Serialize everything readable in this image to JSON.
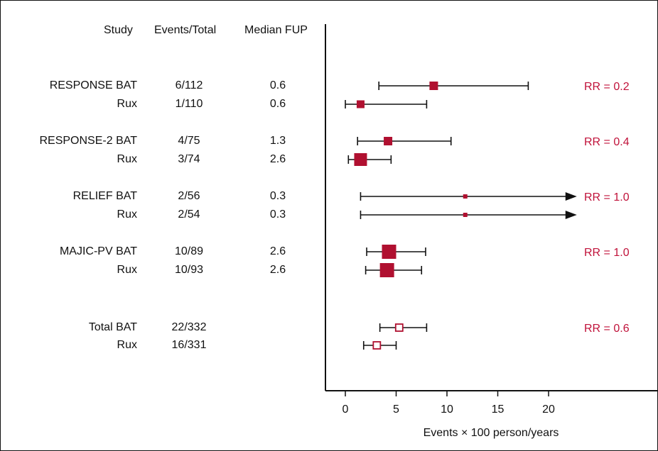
{
  "colors": {
    "marker": "#b01030",
    "rr_text": "#c0123a",
    "line": "#111111"
  },
  "headers": {
    "study": "Study",
    "events": "Events/Total",
    "fup": "Median FUP"
  },
  "chart_data": {
    "type": "forest",
    "xlabel": "Events × 100 person/years",
    "xlim": [
      -1,
      28
    ],
    "xticks": [
      0,
      5,
      10,
      15,
      20
    ],
    "rows": [
      {
        "study": "RESPONSE BAT",
        "events": "6/112",
        "fup": "0.6",
        "est": 8.7,
        "lo": 3.3,
        "hi": 18.0,
        "arrow": false,
        "size": 6,
        "filled": true,
        "rr": "RR = 0.2"
      },
      {
        "study": "Rux",
        "events": "1/110",
        "fup": "0.6",
        "est": 1.5,
        "lo": 0.0,
        "hi": 8.0,
        "arrow": false,
        "size": 5.5,
        "filled": true,
        "rr": ""
      },
      {
        "study": "RESPONSE-2 BAT",
        "events": "4/75",
        "fup": "1.3",
        "est": 4.2,
        "lo": 1.2,
        "hi": 10.4,
        "arrow": false,
        "size": 6,
        "filled": true,
        "rr": "RR = 0.4"
      },
      {
        "study": "Rux",
        "events": "3/74",
        "fup": "2.6",
        "est": 1.5,
        "lo": 0.3,
        "hi": 4.5,
        "arrow": false,
        "size": 9,
        "filled": true,
        "rr": ""
      },
      {
        "study": "RELIEF BAT",
        "events": "2/56",
        "fup": "0.3",
        "est": 11.8,
        "lo": 1.5,
        "hi": 22.5,
        "arrow": true,
        "size": 3,
        "filled": true,
        "rr": "RR = 1.0"
      },
      {
        "study": "Rux",
        "events": "2/54",
        "fup": "0.3",
        "est": 11.8,
        "lo": 1.5,
        "hi": 22.5,
        "arrow": true,
        "size": 3,
        "filled": true,
        "rr": ""
      },
      {
        "study": "MAJIC-PV BAT",
        "events": "10/89",
        "fup": "2.6",
        "est": 4.3,
        "lo": 2.1,
        "hi": 7.9,
        "arrow": false,
        "size": 10,
        "filled": true,
        "rr": "RR = 1.0"
      },
      {
        "study": "Rux",
        "events": "10/93",
        "fup": "2.6",
        "est": 4.1,
        "lo": 2.0,
        "hi": 7.5,
        "arrow": false,
        "size": 10,
        "filled": true,
        "rr": ""
      },
      {
        "study": "Total BAT",
        "events": "22/332",
        "fup": "",
        "est": 5.3,
        "lo": 3.4,
        "hi": 8.0,
        "arrow": false,
        "size": 5,
        "filled": false,
        "rr": "RR = 0.6"
      },
      {
        "study": "Rux",
        "events": "16/331",
        "fup": "",
        "est": 3.1,
        "lo": 1.8,
        "hi": 5.0,
        "arrow": false,
        "size": 5,
        "filled": false,
        "rr": ""
      }
    ]
  }
}
